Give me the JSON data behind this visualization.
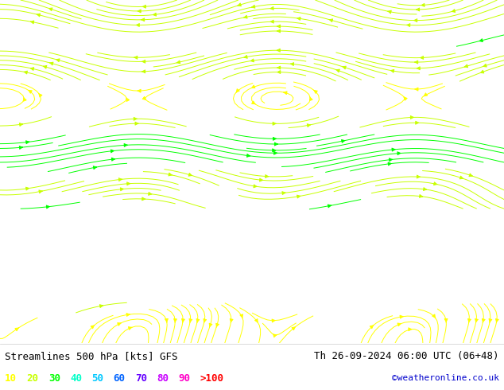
{
  "title_left": "Streamlines 500 hPa [kts] GFS",
  "title_right": "Th 26-09-2024 06:00 UTC (06+48)",
  "credit": "©weatheronline.co.uk",
  "legend_values": [
    "10",
    "20",
    "30",
    "40",
    "50",
    "60",
    "70",
    "80",
    "90",
    ">100"
  ],
  "legend_colors": [
    "#ffff00",
    "#c8ff00",
    "#00ff00",
    "#00ffc8",
    "#00c8ff",
    "#0064ff",
    "#6400ff",
    "#c800ff",
    "#ff00c8",
    "#ff0000"
  ],
  "bg_color": "#e8e8e8",
  "land_color": "#d0d0d0",
  "ocean_color": "#e8e8e8",
  "bottom_bar_color": "#ffffff",
  "bottom_bar_height": 0.12,
  "figsize": [
    6.34,
    4.9
  ],
  "dpi": 100,
  "map_extent": [
    100,
    200,
    -55,
    10
  ],
  "seed": 42
}
